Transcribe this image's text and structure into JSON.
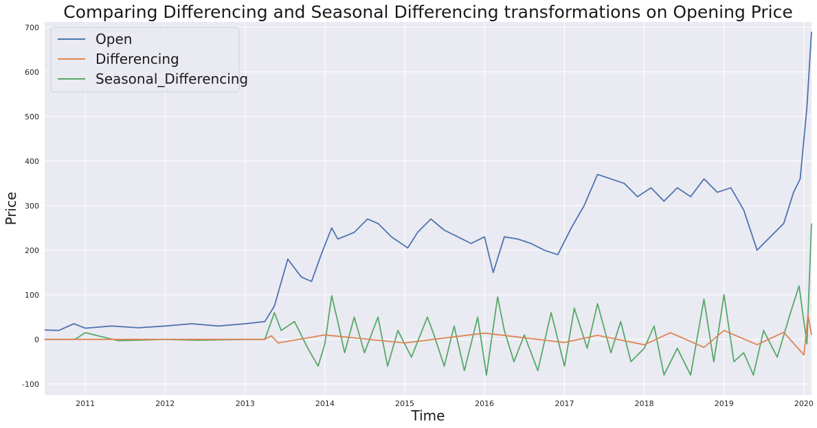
{
  "chart_data": {
    "type": "line",
    "title": "Comparing Differencing and Seasonal Differencing transformations on Opening Price",
    "xlabel": "Time",
    "ylabel": "Price",
    "xlim": [
      "2010-06-29",
      "2020-02-05"
    ],
    "ylim": [
      -125,
      712
    ],
    "x_ticks": [
      "2011",
      "2012",
      "2013",
      "2014",
      "2015",
      "2016",
      "2017",
      "2018",
      "2019",
      "2020"
    ],
    "y_ticks": [
      -100,
      0,
      100,
      200,
      300,
      400,
      500,
      600,
      700
    ],
    "grid": true,
    "legend": {
      "position": "top-left"
    },
    "series": [
      {
        "name": "Open",
        "color": "#4c72b0",
        "x": [
          "2010-06-29",
          "2010-09-01",
          "2010-11-10",
          "2011-01-01",
          "2011-05-01",
          "2011-09-01",
          "2012-01-01",
          "2012-05-01",
          "2012-09-01",
          "2013-01-01",
          "2013-04-01",
          "2013-05-15",
          "2013-07-15",
          "2013-09-15",
          "2013-11-01",
          "2013-12-15",
          "2014-02-01",
          "2014-03-01",
          "2014-05-15",
          "2014-07-15",
          "2014-09-01",
          "2014-11-01",
          "2015-01-15",
          "2015-03-01",
          "2015-05-01",
          "2015-07-01",
          "2015-09-01",
          "2015-11-01",
          "2016-01-01",
          "2016-02-10",
          "2016-04-01",
          "2016-06-01",
          "2016-08-01",
          "2016-10-01",
          "2016-12-01",
          "2017-02-01",
          "2017-04-01",
          "2017-06-01",
          "2017-08-01",
          "2017-10-01",
          "2017-12-01",
          "2018-02-01",
          "2018-04-01",
          "2018-06-01",
          "2018-08-01",
          "2018-10-01",
          "2018-12-01",
          "2019-02-01",
          "2019-04-01",
          "2019-06-01",
          "2019-08-01",
          "2019-10-01",
          "2019-11-15",
          "2019-12-15",
          "2020-01-15",
          "2020-02-05"
        ],
        "values": [
          21,
          20,
          35,
          25,
          30,
          26,
          30,
          35,
          30,
          35,
          40,
          75,
          180,
          140,
          130,
          190,
          250,
          225,
          240,
          270,
          260,
          230,
          205,
          240,
          270,
          245,
          230,
          215,
          230,
          150,
          230,
          225,
          215,
          200,
          190,
          250,
          300,
          370,
          360,
          350,
          320,
          340,
          310,
          340,
          320,
          360,
          330,
          340,
          290,
          200,
          230,
          260,
          330,
          360,
          520,
          690
        ]
      },
      {
        "name": "Differencing",
        "color": "#dd8452",
        "x": [
          "2010-06-29",
          "2013-04-01",
          "2013-05-01",
          "2013-06-01",
          "2014-01-01",
          "2015-01-01",
          "2016-01-01",
          "2017-01-01",
          "2017-06-01",
          "2018-01-01",
          "2018-05-01",
          "2018-10-01",
          "2019-01-01",
          "2019-06-01",
          "2019-10-01",
          "2020-01-01",
          "2020-01-20",
          "2020-02-05"
        ],
        "values": [
          0,
          0,
          8,
          -8,
          10,
          -8,
          14,
          -7,
          9,
          -12,
          15,
          -18,
          20,
          -12,
          16,
          -35,
          55,
          10
        ]
      },
      {
        "name": "Seasonal_Differencing",
        "color": "#55a868",
        "x": [
          "2010-06-29",
          "2010-11-15",
          "2011-01-01",
          "2011-06-01",
          "2012-01-01",
          "2012-06-01",
          "2013-01-01",
          "2013-04-01",
          "2013-05-15",
          "2013-06-15",
          "2013-08-15",
          "2013-10-15",
          "2013-12-01",
          "2014-01-01",
          "2014-02-01",
          "2014-03-01",
          "2014-04-01",
          "2014-05-15",
          "2014-07-01",
          "2014-09-01",
          "2014-10-15",
          "2014-12-01",
          "2015-02-01",
          "2015-04-15",
          "2015-05-15",
          "2015-07-01",
          "2015-08-15",
          "2015-10-01",
          "2015-12-01",
          "2016-01-10",
          "2016-03-01",
          "2016-04-01",
          "2016-05-15",
          "2016-07-01",
          "2016-09-01",
          "2016-11-01",
          "2017-01-01",
          "2017-02-15",
          "2017-04-15",
          "2017-06-01",
          "2017-08-01",
          "2017-09-15",
          "2017-11-01",
          "2018-01-01",
          "2018-02-15",
          "2018-04-01",
          "2018-06-01",
          "2018-08-01",
          "2018-10-01",
          "2018-11-15",
          "2019-01-01",
          "2019-02-15",
          "2019-04-01",
          "2019-05-15",
          "2019-07-01",
          "2019-09-01",
          "2019-11-01",
          "2019-12-10",
          "2020-01-15",
          "2020-02-05"
        ],
        "values": [
          0,
          0,
          15,
          -3,
          0,
          -2,
          0,
          0,
          60,
          20,
          40,
          -20,
          -60,
          -10,
          98,
          40,
          -30,
          50,
          -30,
          50,
          -60,
          20,
          -40,
          50,
          10,
          -60,
          30,
          -70,
          50,
          -80,
          95,
          20,
          -50,
          10,
          -70,
          60,
          -60,
          70,
          -20,
          80,
          -30,
          40,
          -50,
          -20,
          30,
          -80,
          -20,
          -80,
          90,
          -50,
          100,
          -50,
          -30,
          -80,
          20,
          -40,
          60,
          120,
          -10,
          260
        ]
      }
    ]
  }
}
